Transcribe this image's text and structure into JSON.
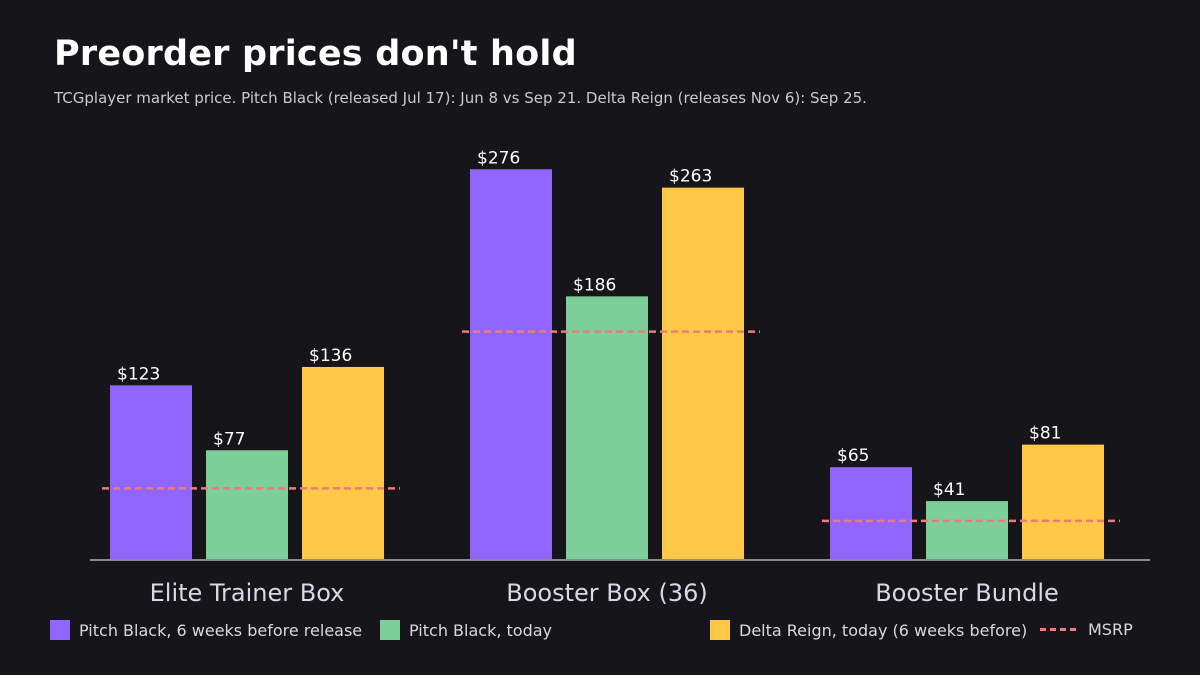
{
  "title": "Preorder prices don't hold",
  "subtitle": "TCGplayer market price. Pitch Black (released Jul 17): Jun 8 vs Sep 21. Delta Reign (releases Nov 6): Sep 25.",
  "colors": {
    "pitch_black_before": "#9166ff",
    "pitch_black_today": "#7dcf9a",
    "delta_reign_today": "#ffc947",
    "msrp": "#f07a7a",
    "background": "#16161a"
  },
  "legend": {
    "series_1": "Pitch Black, 6 weeks before release",
    "series_2": "Pitch Black, today",
    "series_3": "Delta Reign, today (6 weeks before)",
    "msrp": "MSRP"
  },
  "chart_data": {
    "type": "bar",
    "categories": [
      "Elite Trainer Box",
      "Booster Box (36)",
      "Booster Bundle"
    ],
    "series": [
      {
        "name": "Pitch Black, 6 weeks before release",
        "values": [
          123,
          276,
          65
        ],
        "labels": [
          "$123",
          "$276",
          "$65"
        ]
      },
      {
        "name": "Pitch Black, today",
        "values": [
          77,
          186,
          41
        ],
        "labels": [
          "$77",
          "$186",
          "$41"
        ]
      },
      {
        "name": "Delta Reign, today (6 weeks before)",
        "values": [
          136,
          263,
          81
        ],
        "labels": [
          "$136",
          "$263",
          "$81"
        ]
      }
    ],
    "msrp": [
      50,
      161,
      27
    ],
    "ylim": [
      0,
      285
    ],
    "legend_position": "bottom",
    "grid": false
  }
}
